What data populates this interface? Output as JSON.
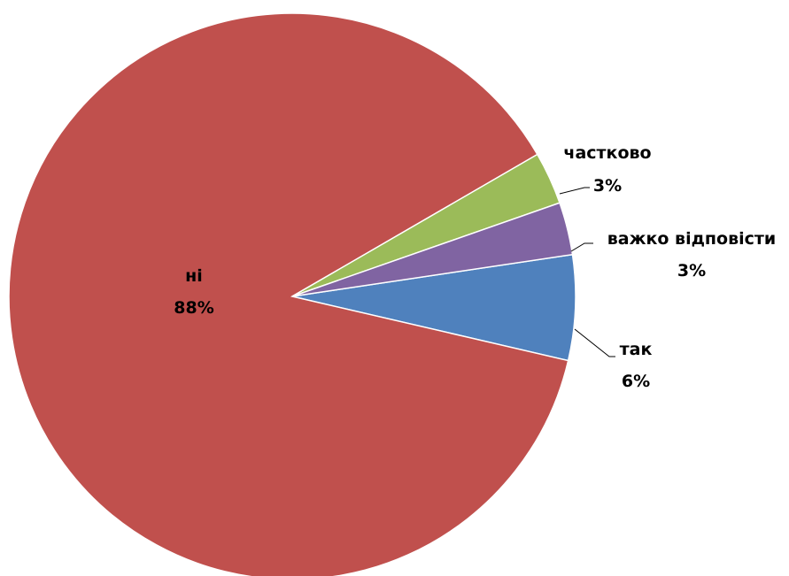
{
  "chart_data": {
    "type": "pie",
    "title": "",
    "start_angle_deg": 0,
    "direction": "clockwise",
    "slices": [
      {
        "name": "так",
        "value": 6,
        "label": "6%",
        "color": "#4F81BD"
      },
      {
        "name": "ні",
        "value": 88,
        "label": "88%",
        "color": "#C0504D"
      },
      {
        "name": "частково",
        "value": 3,
        "label": "3%",
        "color": "#9BBB59"
      },
      {
        "name": "важко відповісти",
        "value": 3,
        "label": "3%",
        "color": "#8064A2"
      }
    ],
    "legend": "none",
    "data_labels": "category and percentage"
  }
}
